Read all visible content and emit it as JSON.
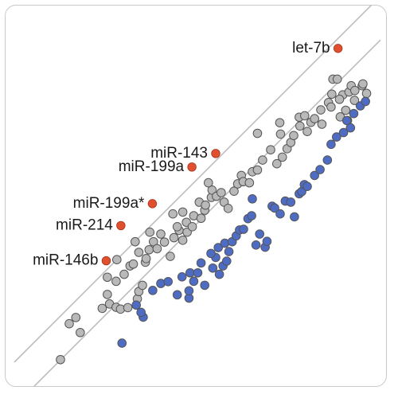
{
  "chart_data": {
    "type": "scatter",
    "title": "",
    "xlabel": "",
    "ylabel": "",
    "xlim": [
      0,
      100
    ],
    "ylim": [
      0,
      100
    ],
    "grid": false,
    "legend": "none",
    "reference_lines": [
      {
        "name": "upper diagonal",
        "points": [
          [
            0,
            5
          ],
          [
            100,
            105
          ]
        ]
      },
      {
        "name": "lower diagonal",
        "points": [
          [
            0,
            -7
          ],
          [
            100,
            93
          ]
        ]
      }
    ],
    "colors": {
      "highlighted": "#e0502e",
      "gray": "#b9b9b9",
      "blue": "#4e6cc4",
      "outline": "#555555",
      "line": "#bdbdbd"
    },
    "labeled_points": [
      {
        "label": "let-7b",
        "x": 88.4,
        "y": 90.7
      },
      {
        "label": "miR-143",
        "x": 55.0,
        "y": 62.0
      },
      {
        "label": "miR-199a",
        "x": 48.5,
        "y": 58.3
      },
      {
        "label": "miR-199a*",
        "x": 37.7,
        "y": 48.3
      },
      {
        "label": "miR-214",
        "x": 29.1,
        "y": 42.3
      },
      {
        "label": "miR-146b",
        "x": 25.1,
        "y": 32.7
      }
    ],
    "series": [
      {
        "group": "gray",
        "points": [
          [
            12.6,
            5.7
          ],
          [
            15.0,
            15.5
          ],
          [
            18.0,
            13.1
          ],
          [
            16.8,
            17.2
          ],
          [
            24.0,
            19.7
          ],
          [
            26.0,
            20.9
          ],
          [
            27.8,
            20.0
          ],
          [
            29.0,
            19.5
          ],
          [
            31.0,
            19.9
          ],
          [
            33.6,
            22.3
          ],
          [
            25.4,
            23.5
          ],
          [
            27.8,
            27.1
          ],
          [
            25.4,
            28.2
          ],
          [
            30.0,
            29.0
          ],
          [
            34.0,
            24.3
          ],
          [
            35.0,
            26.0
          ],
          [
            31.6,
            31.3
          ],
          [
            28.0,
            33.0
          ],
          [
            32.5,
            31.8
          ],
          [
            35.8,
            32.3
          ],
          [
            34.0,
            35.0
          ],
          [
            33.0,
            37.9
          ],
          [
            36.8,
            35.7
          ],
          [
            38.0,
            37.9
          ],
          [
            37.0,
            40.5
          ],
          [
            39.0,
            36.0
          ],
          [
            41.0,
            37.8
          ],
          [
            42.6,
            33.9
          ],
          [
            36.0,
            33.3
          ],
          [
            40.0,
            40.0
          ],
          [
            43.3,
            45.5
          ],
          [
            45.0,
            41.0
          ],
          [
            43.6,
            39.0
          ],
          [
            46.0,
            38.3
          ],
          [
            47.2,
            40.5
          ],
          [
            44.5,
            42.0
          ],
          [
            47.0,
            43.2
          ],
          [
            49.0,
            45.0
          ],
          [
            51.0,
            44.3
          ],
          [
            52.0,
            46.5
          ],
          [
            46.0,
            46.0
          ],
          [
            50.5,
            48.7
          ],
          [
            53.8,
            50.0
          ],
          [
            52.2,
            47.9
          ],
          [
            48.6,
            42.0
          ],
          [
            54.0,
            52.0
          ],
          [
            55.2,
            50.3
          ],
          [
            53.0,
            54.0
          ],
          [
            56.5,
            51.3
          ],
          [
            57.3,
            48.7
          ],
          [
            58.4,
            47.0
          ],
          [
            60.0,
            51.7
          ],
          [
            62.0,
            56.0
          ],
          [
            61.0,
            53.7
          ],
          [
            62.5,
            54.3
          ],
          [
            65.0,
            57.0
          ],
          [
            66.4,
            57.5
          ],
          [
            64.2,
            54.0
          ],
          [
            67.8,
            60.2
          ],
          [
            66.4,
            67.5
          ],
          [
            70.0,
            63.0
          ],
          [
            71.7,
            59.2
          ],
          [
            73.2,
            61.0
          ],
          [
            74.5,
            63.3
          ],
          [
            72.7,
            67.3
          ],
          [
            75.5,
            65.0
          ],
          [
            76.3,
            66.9
          ],
          [
            72.5,
            70.4
          ],
          [
            77.8,
            71.9
          ],
          [
            78.0,
            69.5
          ],
          [
            79.3,
            72.3
          ],
          [
            80.0,
            68.0
          ],
          [
            81.0,
            70.5
          ],
          [
            82.0,
            71.5
          ],
          [
            84.0,
            70.0
          ],
          [
            83.7,
            73.9
          ],
          [
            85.8,
            75.9
          ],
          [
            86.5,
            74.7
          ],
          [
            87.0,
            82.3
          ],
          [
            88.2,
            82.3
          ],
          [
            86.7,
            78.2
          ],
          [
            89.7,
            78.0
          ],
          [
            88.8,
            76.8
          ],
          [
            91.4,
            78.8
          ],
          [
            92.0,
            80.5
          ],
          [
            93.0,
            79.2
          ],
          [
            95.0,
            80.5
          ],
          [
            95.2,
            81.0
          ],
          [
            96.2,
            78.4
          ],
          [
            92.9,
            76.5
          ],
          [
            90.5,
            73.8
          ],
          [
            89.0,
            72.0
          ],
          [
            91.0,
            71.0
          ]
        ]
      },
      {
        "group": "blue",
        "points": [
          [
            29.4,
            10.2
          ],
          [
            35.2,
            17.3
          ],
          [
            34.6,
            18.6
          ],
          [
            33.3,
            20.6
          ],
          [
            37.8,
            24.6
          ],
          [
            40.0,
            26.5
          ],
          [
            42.0,
            27.0
          ],
          [
            44.5,
            23.4
          ],
          [
            47.7,
            22.5
          ],
          [
            45.8,
            28.3
          ],
          [
            47.7,
            24.5
          ],
          [
            48.0,
            29.4
          ],
          [
            49.0,
            27.1
          ],
          [
            50.1,
            29.4
          ],
          [
            51.0,
            32.1
          ],
          [
            52.0,
            26.0
          ],
          [
            54.2,
            30.7
          ],
          [
            55.0,
            33.6
          ],
          [
            56.0,
            29.0
          ],
          [
            57.0,
            31.3
          ],
          [
            53.7,
            34.7
          ],
          [
            55.7,
            36.3
          ],
          [
            57.5,
            37.5
          ],
          [
            58.6,
            35.2
          ],
          [
            59.5,
            37.9
          ],
          [
            60.6,
            39.5
          ],
          [
            61.5,
            41.1
          ],
          [
            62.6,
            41.3
          ],
          [
            63.8,
            44.2
          ],
          [
            64.8,
            45.0
          ],
          [
            66.0,
            37.0
          ],
          [
            67.0,
            40.0
          ],
          [
            68.5,
            36.4
          ],
          [
            69.0,
            38.0
          ],
          [
            70.4,
            47.6
          ],
          [
            71.1,
            47.1
          ],
          [
            72.6,
            45.5
          ],
          [
            74.0,
            49.0
          ],
          [
            75.5,
            48.7
          ],
          [
            76.5,
            44.7
          ],
          [
            77.8,
            51.0
          ],
          [
            78.5,
            51.6
          ],
          [
            79.2,
            53.5
          ],
          [
            80.0,
            53.0
          ],
          [
            82.0,
            56.0
          ],
          [
            83.5,
            57.6
          ],
          [
            85.5,
            60.2
          ],
          [
            86.5,
            64.5
          ],
          [
            88.0,
            66.5
          ],
          [
            89.9,
            67.7
          ],
          [
            90.8,
            71.0
          ],
          [
            91.8,
            69.0
          ],
          [
            92.7,
            72.9
          ],
          [
            94.5,
            75.0
          ],
          [
            95.9,
            76.2
          ],
          [
            65.0,
            49.6
          ],
          [
            58.0,
            32.6
          ]
        ]
      }
    ]
  }
}
